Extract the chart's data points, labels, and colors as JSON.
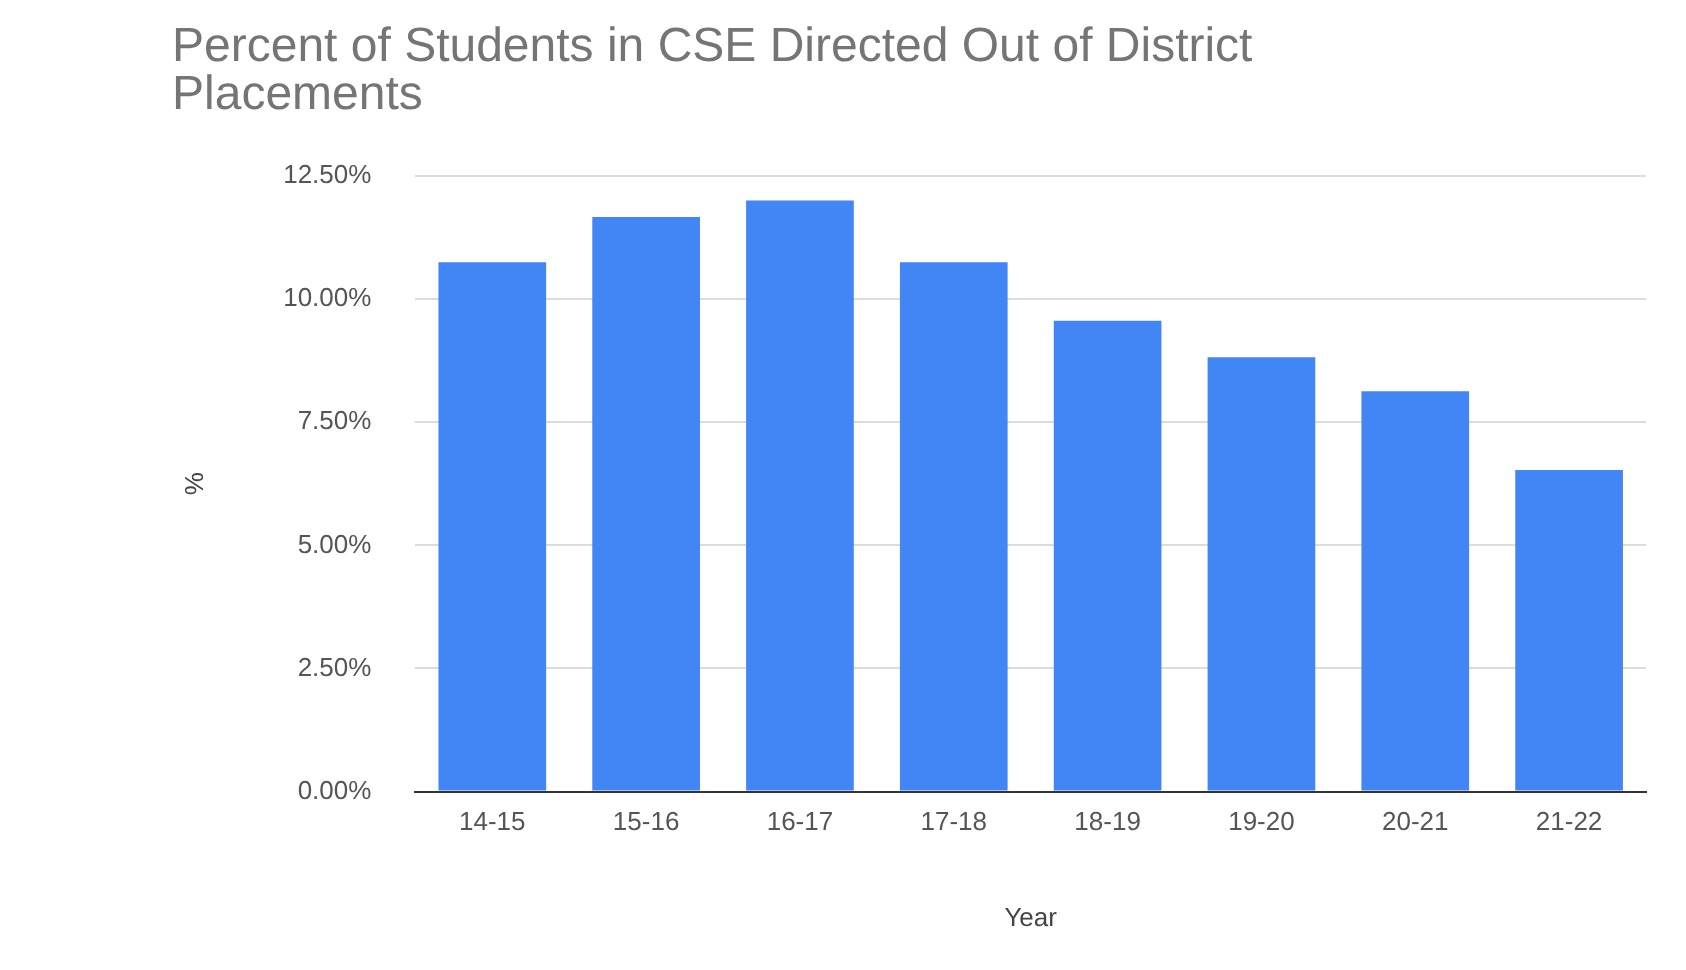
{
  "chart_data": {
    "type": "bar",
    "title": "Percent of Students in CSE Directed Out of District Placements",
    "xlabel": "Year",
    "ylabel": "%",
    "categories": [
      "14-15",
      "15-16",
      "16-17",
      "17-18",
      "18-19",
      "19-20",
      "20-21",
      "21-22"
    ],
    "values": [
      10.75,
      11.67,
      12.0,
      10.75,
      9.56,
      8.82,
      8.13,
      6.53
    ],
    "color": "#4285f4",
    "ylim": [
      0,
      12.5
    ],
    "yticks": [
      {
        "value": 0,
        "label": "0.00%"
      },
      {
        "value": 2.5,
        "label": "2.50%"
      },
      {
        "value": 5,
        "label": "5.00%"
      },
      {
        "value": 7.5,
        "label": "7.50%"
      },
      {
        "value": 10,
        "label": "10.00%"
      },
      {
        "value": 12.5,
        "label": "12.50%"
      }
    ],
    "grid": "y",
    "legend": false
  }
}
